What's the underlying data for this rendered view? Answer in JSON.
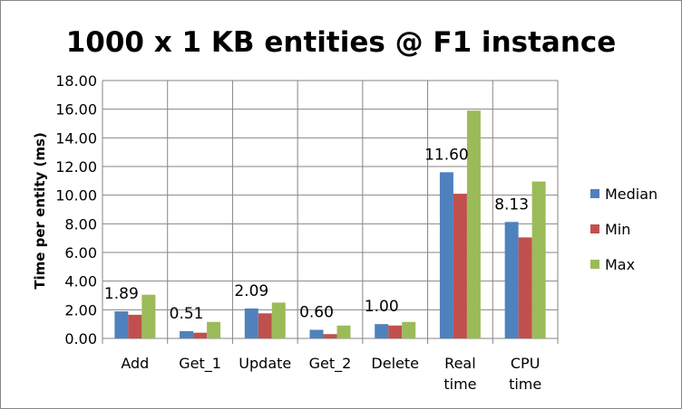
{
  "chart_data": {
    "type": "bar",
    "title": "1000 x 1 KB entities @ F1 instance",
    "xlabel": "",
    "ylabel": "Time per entity (ms)",
    "ylim": [
      0,
      18
    ],
    "yticks": [
      "0.00",
      "2.00",
      "4.00",
      "6.00",
      "8.00",
      "10.00",
      "12.00",
      "14.00",
      "16.00",
      "18.00"
    ],
    "grid": true,
    "legend_position": "right",
    "categories": [
      [
        "Add"
      ],
      [
        "Get_1"
      ],
      [
        "Update"
      ],
      [
        "Get_2"
      ],
      [
        "Delete"
      ],
      [
        "Real",
        "time"
      ],
      [
        "CPU",
        "time"
      ]
    ],
    "series": [
      {
        "name": "Median",
        "color": "#4f81bd",
        "values": [
          1.89,
          0.51,
          2.09,
          0.6,
          1.0,
          11.6,
          8.13
        ]
      },
      {
        "name": "Min",
        "color": "#c0504d",
        "values": [
          1.65,
          0.4,
          1.75,
          0.3,
          0.9,
          10.1,
          7.05
        ]
      },
      {
        "name": "Max",
        "color": "#9bbb59",
        "values": [
          3.05,
          1.15,
          2.5,
          0.9,
          1.15,
          15.9,
          10.95
        ]
      }
    ],
    "data_labels": [
      "1.89",
      "0.51",
      "2.09",
      "0.60",
      "1.00",
      "11.60",
      "8.13"
    ]
  }
}
